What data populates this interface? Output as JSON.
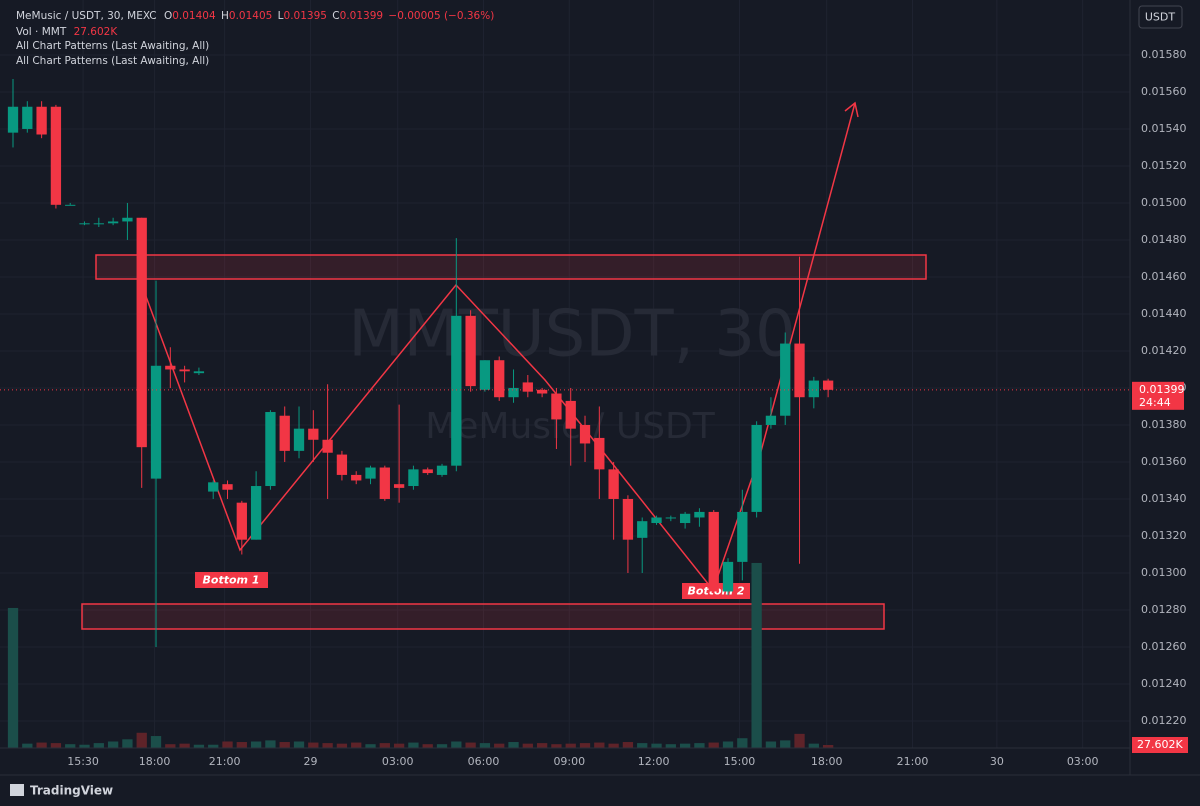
{
  "header": {
    "symbol": "MeMusic / USDT, 30, MEXC",
    "open_label": "O",
    "open": "0.01404",
    "high_label": "H",
    "high": "0.01405",
    "low_label": "L",
    "low": "0.01395",
    "close_label": "C",
    "close": "0.01399",
    "change": "−0.00005 (−0.36%)",
    "volume_label": "Vol · MMT",
    "volume": "27.602K",
    "indicators": [
      "All Chart Patterns (Last Awaiting, All)",
      "All Chart Patterns (Last Awaiting, All)"
    ]
  },
  "currency_button": "USDT",
  "watermark": {
    "line1": "MMTUSDT, 30",
    "line2": "MeMusic / USDT"
  },
  "annotations": [
    "Bottom 1",
    "Bottom 2"
  ],
  "footer": "TradingView",
  "chart_data": {
    "type": "candlestick",
    "up_color": "#089981",
    "down_color": "#f23645",
    "volume_up_color": "#1b4e4a",
    "volume_down_color": "#5e2329",
    "open": [
      0.01538,
      0.0154,
      0.01552,
      0.01552,
      0.01499,
      0.01489,
      0.01489,
      0.01489,
      0.0149,
      0.01492,
      0.01351,
      0.01412,
      0.0141,
      0.01408,
      0.01344,
      0.01348,
      0.01338,
      0.01318,
      0.01347,
      0.01385,
      0.01366,
      0.01378,
      0.01372,
      0.01364,
      0.01353,
      0.01351,
      0.01357,
      0.01348,
      0.01347,
      0.01356,
      0.01353,
      0.01358,
      0.01439,
      0.01399,
      0.01415,
      0.01395,
      0.01403,
      0.01399,
      0.01397,
      0.01393,
      0.0138,
      0.01373,
      0.01356,
      0.0134,
      0.01319,
      0.01327,
      0.0133,
      0.01327,
      0.0133,
      0.01333,
      0.0129,
      0.01306,
      0.01333,
      0.0138,
      0.01385,
      0.01424,
      0.01395,
      0.01404
    ],
    "high": [
      0.01567,
      0.01555,
      0.01555,
      0.01553,
      0.015,
      0.0149,
      0.01492,
      0.01492,
      0.015,
      0.01492,
      0.01458,
      0.01422,
      0.01412,
      0.01411,
      0.0135,
      0.0135,
      0.01339,
      0.01355,
      0.01388,
      0.0139,
      0.0139,
      0.01388,
      0.01402,
      0.01366,
      0.01355,
      0.01358,
      0.01358,
      0.01391,
      0.01358,
      0.01357,
      0.01359,
      0.01481,
      0.01442,
      0.01415,
      0.01417,
      0.0141,
      0.01407,
      0.014,
      0.014,
      0.014,
      0.01385,
      0.0139,
      0.0136,
      0.01342,
      0.0133,
      0.01331,
      0.01331,
      0.01333,
      0.01335,
      0.01334,
      0.01308,
      0.01345,
      0.01382,
      0.01395,
      0.0143,
      0.01471,
      0.01406,
      0.01405
    ],
    "low": [
      0.0153,
      0.01538,
      0.01535,
      0.01497,
      0.01499,
      0.01488,
      0.01487,
      0.01488,
      0.0148,
      0.01346,
      0.0126,
      0.014,
      0.01403,
      0.01407,
      0.0134,
      0.0134,
      0.0131,
      0.01318,
      0.01345,
      0.0136,
      0.01362,
      0.0136,
      0.0134,
      0.0135,
      0.01348,
      0.01348,
      0.01339,
      0.01338,
      0.01345,
      0.01353,
      0.01352,
      0.01355,
      0.01398,
      0.01398,
      0.01393,
      0.01392,
      0.01395,
      0.01395,
      0.01367,
      0.01358,
      0.0136,
      0.0134,
      0.01318,
      0.013,
      0.013,
      0.01326,
      0.01328,
      0.01324,
      0.01325,
      0.01288,
      0.01288,
      0.01296,
      0.0133,
      0.01378,
      0.0138,
      0.01305,
      0.01389,
      0.01395
    ],
    "close": [
      0.01552,
      0.01552,
      0.01537,
      0.01499,
      0.01499,
      0.01489,
      0.01489,
      0.0149,
      0.01492,
      0.01368,
      0.01412,
      0.0141,
      0.01409,
      0.01409,
      0.01349,
      0.01345,
      0.01318,
      0.01347,
      0.01387,
      0.01366,
      0.01378,
      0.01372,
      0.01365,
      0.01353,
      0.0135,
      0.01357,
      0.0134,
      0.01346,
      0.01356,
      0.01354,
      0.01358,
      0.01439,
      0.01401,
      0.01415,
      0.01395,
      0.014,
      0.01398,
      0.01397,
      0.01383,
      0.01378,
      0.0137,
      0.01356,
      0.0134,
      0.01318,
      0.01328,
      0.0133,
      0.0133,
      0.01332,
      0.01333,
      0.0129,
      0.01306,
      0.01333,
      0.0138,
      0.01385,
      0.01424,
      0.01395,
      0.01404,
      0.01399
    ],
    "volume": [
      1288,
      40,
      50,
      45,
      35,
      30,
      45,
      60,
      80,
      140,
      110,
      35,
      40,
      30,
      30,
      60,
      55,
      60,
      70,
      55,
      60,
      50,
      45,
      40,
      50,
      35,
      45,
      40,
      50,
      35,
      35,
      60,
      50,
      45,
      40,
      55,
      40,
      45,
      35,
      40,
      45,
      50,
      40,
      55,
      45,
      40,
      35,
      40,
      45,
      50,
      60,
      90,
      1702,
      60,
      70,
      130,
      40,
      27.602
    ],
    "xlim": [
      -0.91,
      78.11
    ],
    "xticks": [
      {
        "value": 4.9,
        "label": "15:30"
      },
      {
        "value": 9.9,
        "label": "18:00"
      },
      {
        "value": 14.8,
        "label": "21:00"
      },
      {
        "value": 20.8,
        "label": "29"
      },
      {
        "value": 26.9,
        "label": "03:00"
      },
      {
        "value": 32.9,
        "label": "06:00"
      },
      {
        "value": 38.9,
        "label": "09:00"
      },
      {
        "value": 44.8,
        "label": "12:00"
      },
      {
        "value": 50.8,
        "label": "15:00"
      },
      {
        "value": 56.9,
        "label": "18:00"
      },
      {
        "value": 62.9,
        "label": "21:00"
      },
      {
        "value": 68.8,
        "label": "30"
      },
      {
        "value": 74.8,
        "label": "03:00"
      }
    ],
    "ylim": [
      0.012054,
      0.016097
    ],
    "yticks": [
      {
        "value": 0.0122,
        "label": "0.01220"
      },
      {
        "value": 0.0124,
        "label": "0.01240"
      },
      {
        "value": 0.0126,
        "label": "0.01260"
      },
      {
        "value": 0.0128,
        "label": "0.01280"
      },
      {
        "value": 0.013,
        "label": "0.01300"
      },
      {
        "value": 0.0132,
        "label": "0.01320"
      },
      {
        "value": 0.0134,
        "label": "0.01340"
      },
      {
        "value": 0.0136,
        "label": "0.01360"
      },
      {
        "value": 0.0138,
        "label": "0.01380"
      },
      {
        "value": 0.014,
        "label": "0.01400"
      },
      {
        "value": 0.0142,
        "label": "0.01420"
      },
      {
        "value": 0.0144,
        "label": "0.01440"
      },
      {
        "value": 0.0146,
        "label": "0.01460"
      },
      {
        "value": 0.0148,
        "label": "0.01480"
      },
      {
        "value": 0.015,
        "label": "0.01500"
      },
      {
        "value": 0.0152,
        "label": "0.01520"
      },
      {
        "value": 0.0154,
        "label": "0.01540"
      },
      {
        "value": 0.0156,
        "label": "0.01560"
      },
      {
        "value": 0.0158,
        "label": "0.01580"
      }
    ],
    "y2lim": [
      0,
      6880
    ],
    "grid": true,
    "last_price": {
      "value": 0.01399,
      "label": "0.01399"
    },
    "countdown": "24:44",
    "last_volume": {
      "value": 27.602,
      "label": "27.602K"
    }
  }
}
